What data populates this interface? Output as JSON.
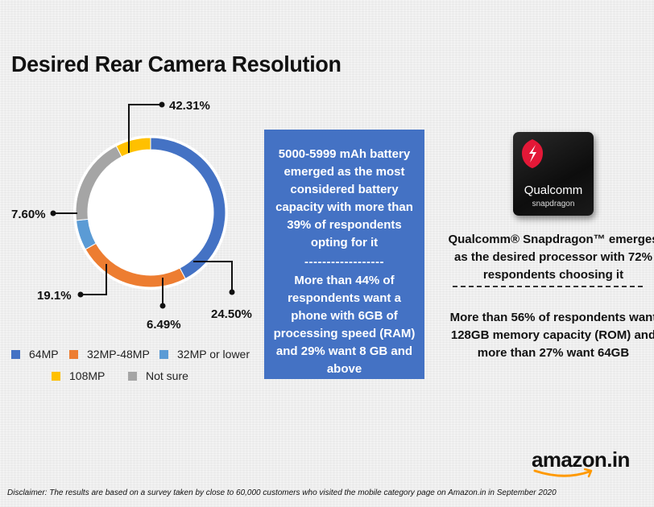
{
  "chart_data": {
    "type": "pie",
    "title": "Desired Rear Camera Resolution",
    "series": [
      {
        "name": "64MP",
        "value": 42.31,
        "label": "42.31%",
        "color": "#4472c4"
      },
      {
        "name": "32MP-48MP",
        "value": 24.5,
        "label": "24.50%",
        "color": "#ed7d31"
      },
      {
        "name": "32MP or lower",
        "value": 6.49,
        "label": "6.49%",
        "color": "#5b9bd5"
      },
      {
        "name": "Not sure",
        "value": 19.1,
        "label": "19.1%",
        "color": "#a5a5a5"
      },
      {
        "name": "108MP",
        "value": 7.6,
        "label": "7.60%",
        "color": "#ffc000"
      }
    ],
    "legend": [
      {
        "name": "64MP",
        "color": "#4472c4"
      },
      {
        "name": "32MP-48MP",
        "color": "#ed7d31"
      },
      {
        "name": "32MP or lower",
        "color": "#5b9bd5"
      },
      {
        "name": "108MP",
        "color": "#ffc000"
      },
      {
        "name": "Not sure",
        "color": "#a5a5a5"
      }
    ],
    "legend_placement": "bottom"
  },
  "panel": {
    "battery_text": "5000-5999 mAh battery emerged as the most considered battery capacity with more than 39% of respondents opting for it",
    "divider": "------------------",
    "ram_text": "More than 44% of respondents want a phone with 6GB of processing speed (RAM) and 29% want 8 GB and above",
    "color": "#4472c4"
  },
  "processor": {
    "chip_brand": "Qualcomm",
    "chip_sub": "snapdragon",
    "chip_logo_color": "#e31837",
    "text": "Qualcomm® Snapdragon™ emerges as the desired processor with 72% respondents choosing it"
  },
  "memory": {
    "text": "More than 56% of respondents want 128GB memory capacity (ROM) and more than 27% want 64GB"
  },
  "brand": {
    "logo_text": "amazon.in",
    "smile_color": "#ff9900"
  },
  "disclaimer": "Disclaimer: The results are based on a survey taken by close to 60,000 customers who visited the mobile category page on Amazon.in in September 2020"
}
